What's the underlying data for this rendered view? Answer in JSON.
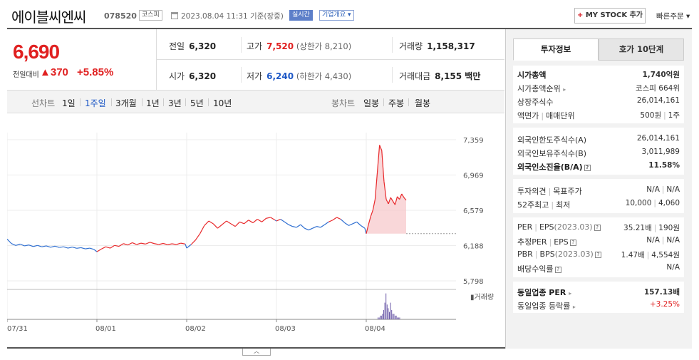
{
  "header": {
    "company_name": "에이블씨엔씨",
    "code": "078520",
    "market": "코스피",
    "as_of": "2023.08.04 11:31 기준(장중)",
    "realtime_label": "실시간",
    "company_info_label": "기업개요 ▾",
    "mystock_plus": "+",
    "mystock_label": " MY STOCK 추가",
    "quick_order_label": "빠른주문 ▾"
  },
  "price": {
    "current": "6,690",
    "change_label": "전일대비",
    "change": "▲370",
    "change_pct": "+5.85%"
  },
  "summary": {
    "prev_close_label": "전일",
    "prev_close": "6,320",
    "high_label": "고가",
    "high": "7,520",
    "upper_limit": "(상한가 8,210)",
    "volume_label": "거래량",
    "volume": "1,158,317",
    "open_label": "시가",
    "open": "6,320",
    "low_label": "저가",
    "low": "6,240",
    "lower_limit": "(하한가 4,430)",
    "amount_label": "거래대금",
    "amount": "8,155 백만"
  },
  "tabs": {
    "line_label": "선차트",
    "periods": [
      "1일",
      "1주일",
      "3개월",
      "1년",
      "3년",
      "5년",
      "10년"
    ],
    "candle_label": "봉차트",
    "candles": [
      "일봉",
      "주봉",
      "월봉"
    ]
  },
  "chart_data": {
    "type": "line",
    "y_ticks": [
      "7,359",
      "6,969",
      "6,579",
      "6,188",
      "5,798"
    ],
    "ylim": [
      5798,
      7359
    ],
    "x_ticks": [
      "07/31",
      "08/01",
      "08/02",
      "08/03",
      "08/04"
    ],
    "baseline": 6320,
    "volume_label": "거래량",
    "colors": {
      "up": "#e8292b",
      "down": "#2f6fd1",
      "volume": "#6b5aa8",
      "area": "#f7c9cc"
    },
    "series": [
      {
        "day": "07/31",
        "values": [
          6260,
          6210,
          6190,
          6205,
          6185,
          6195,
          6178,
          6190,
          6175,
          6185,
          6170,
          6182,
          6168,
          6175,
          6160,
          6172,
          6158,
          6165,
          6152,
          6160,
          6145
        ]
      },
      {
        "day": "08/01",
        "values": [
          6120,
          6150,
          6175,
          6160,
          6190,
          6180,
          6210,
          6195,
          6220,
          6200,
          6215,
          6205,
          6225,
          6210,
          6200,
          6212,
          6198,
          6208,
          6200,
          6215,
          6205
        ]
      },
      {
        "day": "08/02",
        "values": [
          6160,
          6200,
          6250,
          6320,
          6410,
          6460,
          6430,
          6380,
          6420,
          6460,
          6430,
          6400,
          6450,
          6430,
          6470,
          6440,
          6480,
          6450,
          6490,
          6500,
          6470
        ]
      },
      {
        "day": "08/03",
        "values": [
          6460,
          6480,
          6450,
          6420,
          6400,
          6390,
          6420,
          6380,
          6360,
          6380,
          6400,
          6390,
          6420,
          6450,
          6470,
          6500,
          6480,
          6440,
          6410,
          6430,
          6450,
          6410,
          6380
        ]
      },
      {
        "day": "08/04",
        "values": [
          6320,
          6420,
          6510,
          6580,
          6700,
          7000,
          7300,
          7240,
          6900,
          6700,
          6650,
          6720,
          6680,
          6640,
          6730,
          6700,
          6760,
          6720,
          6690
        ]
      }
    ]
  },
  "side": {
    "tab_invest": "투자정보",
    "tab_orderbook": "호가 10단계",
    "market_cap_label": "시가총액",
    "market_cap": "1,740억원",
    "market_cap_rank_label": "시가총액순위",
    "market_cap_rank": "코스피 664위",
    "shares_label": "상장주식수",
    "shares": "26,014,161",
    "par_label": "액면가",
    "par_sep": "|",
    "unit_label": "매매단위",
    "par": "500원",
    "unit": "1주",
    "foreign_limit_label": "외국인한도주식수(A)",
    "foreign_limit": "26,014,161",
    "foreign_hold_label": "외국인보유주식수(B)",
    "foreign_hold": "3,011,989",
    "foreign_ratio_label": "외국인소진율(B/A)",
    "foreign_ratio": "11.58%",
    "opinion_label": "투자의견",
    "target_label": "목표주가",
    "opinion": "N/A",
    "target": "N/A",
    "w52_high_label": "52주최고",
    "w52_low_label": "최저",
    "w52_high": "10,000",
    "w52_low": "4,060",
    "per_label": "PER",
    "eps_label": "EPS",
    "eps_year": "(2023.03)",
    "per": "35.21배",
    "eps": "190원",
    "est_per_label": "추정PER",
    "est_eps_label": "EPS",
    "est_per": "N/A",
    "est_eps": "N/A",
    "pbr_label": "PBR",
    "bps_label": "BPS",
    "bps_year": "(2023.03)",
    "pbr": "1.47배",
    "bps": "4,554원",
    "div_label": "배당수익률",
    "div": "N/A",
    "sector_per_label": "동일업종 PER",
    "sector_per": "157.13배",
    "sector_chg_label": "동일업종 등락률",
    "sector_chg": "+3.25%"
  }
}
